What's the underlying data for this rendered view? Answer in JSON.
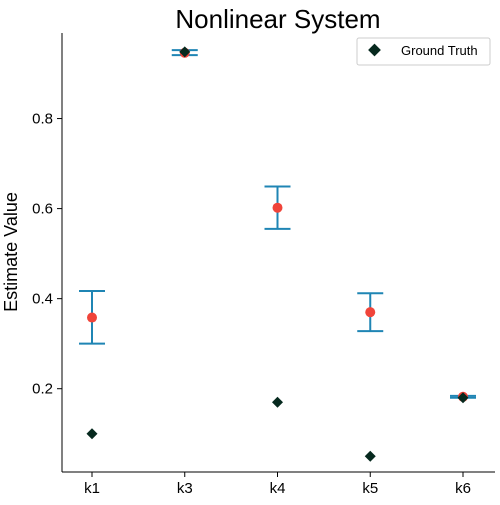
{
  "chart_data": {
    "type": "scatter",
    "title": "Nonlinear System",
    "xlabel": "",
    "ylabel": "Estimate Value",
    "categories": [
      "k1",
      "k3",
      "k4",
      "k5",
      "k6"
    ],
    "ylim": [
      0.015,
      0.99
    ],
    "yticks": [
      0.2,
      0.4,
      0.6,
      0.8
    ],
    "grid": false,
    "legend": {
      "placement": "top-right",
      "entries": [
        "Ground Truth"
      ]
    },
    "series": [
      {
        "marker": "circle",
        "color": "#f0443a",
        "values": [
          0.358,
          0.946,
          0.602,
          0.37,
          0.182
        ],
        "error_low": [
          0.3,
          0.941,
          0.555,
          0.328,
          0.18
        ],
        "error_high": [
          0.417,
          0.952,
          0.649,
          0.412,
          0.184
        ],
        "error_color": "#1f85b4"
      },
      {
        "name": "Ground Truth",
        "marker": "diamond",
        "color": "#06291e",
        "values": [
          0.1,
          0.948,
          0.17,
          0.05,
          0.18
        ]
      }
    ]
  }
}
